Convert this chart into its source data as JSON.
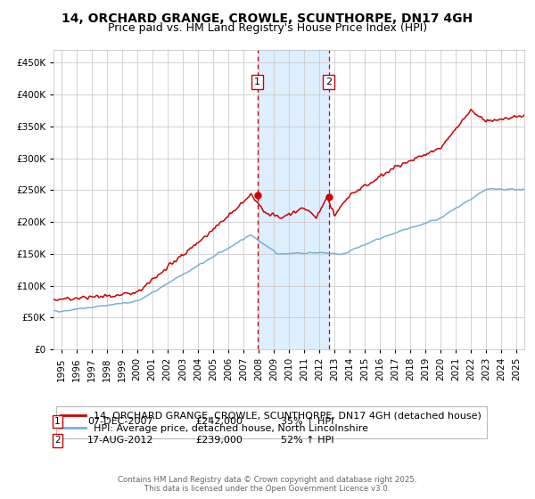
{
  "title": "14, ORCHARD GRANGE, CROWLE, SCUNTHORPE, DN17 4GH",
  "subtitle": "Price paid vs. HM Land Registry's House Price Index (HPI)",
  "ylim": [
    0,
    470000
  ],
  "yticks": [
    0,
    50000,
    100000,
    150000,
    200000,
    250000,
    300000,
    350000,
    400000,
    450000
  ],
  "ytick_labels": [
    "£0",
    "£50K",
    "£100K",
    "£150K",
    "£200K",
    "£250K",
    "£300K",
    "£350K",
    "£400K",
    "£450K"
  ],
  "xlim": [
    1994.5,
    2025.5
  ],
  "xticks": [
    1995,
    1996,
    1997,
    1998,
    1999,
    2000,
    2001,
    2002,
    2003,
    2004,
    2005,
    2006,
    2007,
    2008,
    2009,
    2010,
    2011,
    2012,
    2013,
    2014,
    2015,
    2016,
    2017,
    2018,
    2019,
    2020,
    2021,
    2022,
    2023,
    2024,
    2025
  ],
  "sale1_x": 2007.92,
  "sale1_y": 242000,
  "sale1_label": "07-DEC-2007",
  "sale1_price": "£242,000",
  "sale1_hpi": "35% ↑ HPI",
  "sale2_x": 2012.62,
  "sale2_y": 239000,
  "sale2_label": "17-AUG-2012",
  "sale2_price": "£239,000",
  "sale2_hpi": "52% ↑ HPI",
  "red_line_color": "#cc0000",
  "blue_line_color": "#7ab0d4",
  "shade_color": "#ddeeff",
  "grid_color": "#cccccc",
  "background_color": "#ffffff",
  "legend_label_red": "14, ORCHARD GRANGE, CROWLE, SCUNTHORPE, DN17 4GH (detached house)",
  "legend_label_blue": "HPI: Average price, detached house, North Lincolnshire",
  "footer": "Contains HM Land Registry data © Crown copyright and database right 2025.\nThis data is licensed under the Open Government Licence v3.0.",
  "title_fontsize": 10,
  "subtitle_fontsize": 9,
  "tick_fontsize": 7.5,
  "legend_fontsize": 8
}
